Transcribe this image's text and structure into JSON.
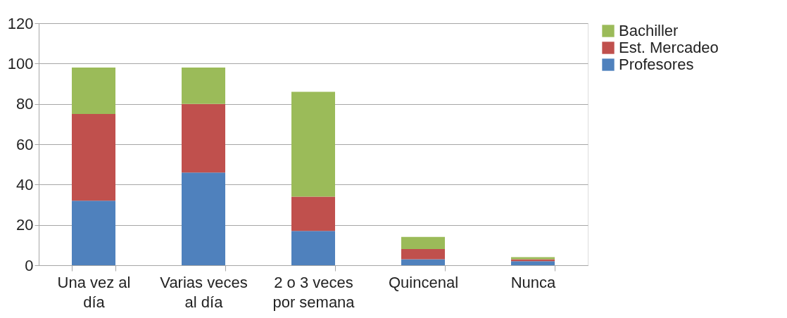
{
  "chart_data": {
    "type": "bar",
    "stacked": true,
    "categories": [
      "Una vez al día",
      "Varias veces al día",
      "2 o 3 veces por semana",
      "Quincenal",
      "Nunca"
    ],
    "series": [
      {
        "name": "Profesores",
        "color": "#4f81bd",
        "values": [
          32,
          46,
          17,
          3,
          2
        ]
      },
      {
        "name": "Est. Mercadeo",
        "color": "#c0504d",
        "values": [
          43,
          34,
          17,
          5,
          1
        ]
      },
      {
        "name": "Bachiller",
        "color": "#9bbb59",
        "values": [
          23,
          18,
          52,
          6,
          1
        ]
      }
    ],
    "ylim": [
      0,
      120
    ],
    "yticks": [
      0,
      20,
      40,
      60,
      80,
      100,
      120
    ],
    "grid": "y",
    "legend": "right"
  }
}
